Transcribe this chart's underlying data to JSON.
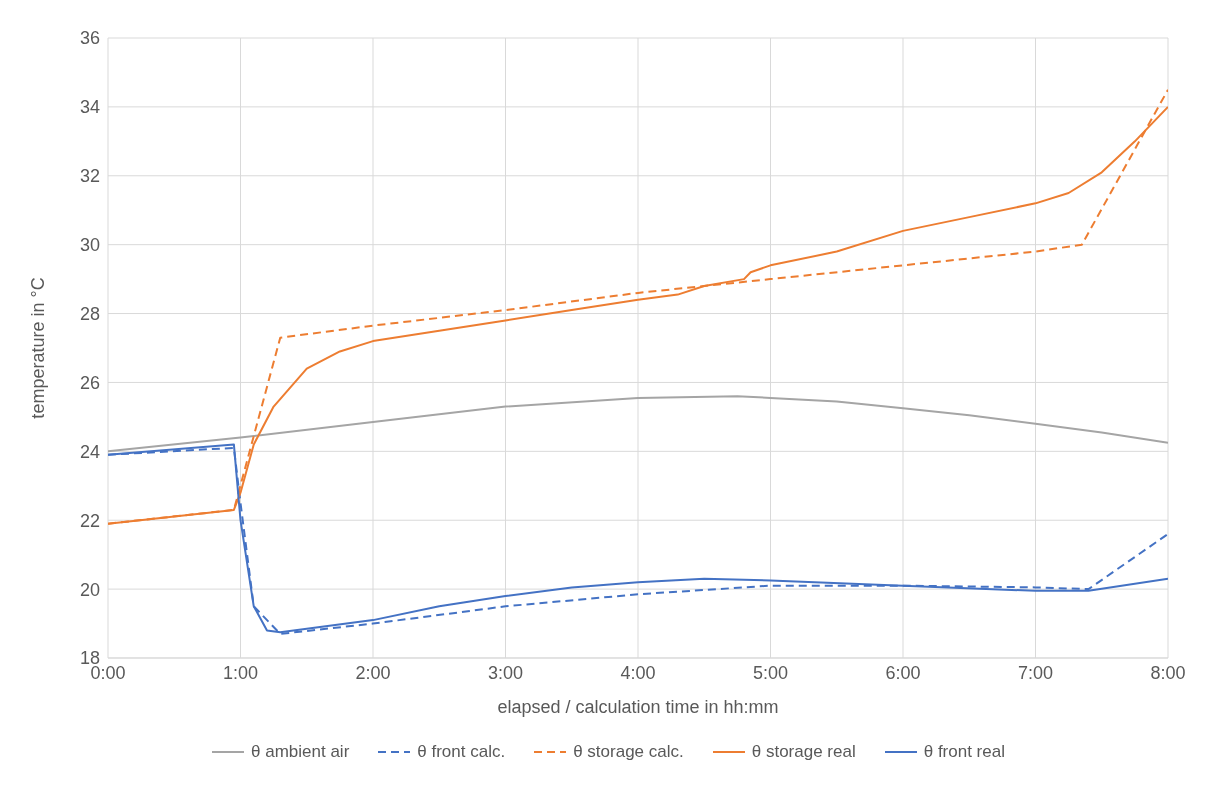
{
  "chart_data": {
    "type": "line",
    "xlabel": "elapsed / calculation time in hh:mm",
    "ylabel": "temperature in °C",
    "xlim": [
      0,
      8
    ],
    "xticks": [
      {
        "value": 0,
        "label": "0:00"
      },
      {
        "value": 1,
        "label": "1:00"
      },
      {
        "value": 2,
        "label": "2:00"
      },
      {
        "value": 3,
        "label": "3:00"
      },
      {
        "value": 4,
        "label": "4:00"
      },
      {
        "value": 5,
        "label": "5:00"
      },
      {
        "value": 6,
        "label": "6:00"
      },
      {
        "value": 7,
        "label": "7:00"
      },
      {
        "value": 8,
        "label": "8:00"
      }
    ],
    "ylim": [
      18,
      36
    ],
    "yticks": [
      18,
      20,
      22,
      24,
      26,
      28,
      30,
      32,
      34,
      36
    ],
    "grid": true,
    "legend": "bottom",
    "series": [
      {
        "name": "θ ambient air",
        "color": "#a5a5a5",
        "line_style": "solid",
        "x": [
          0,
          1,
          2,
          3,
          4,
          4.75,
          5,
          5.5,
          6,
          6.5,
          7,
          7.5,
          8
        ],
        "values": [
          24.0,
          24.4,
          24.85,
          25.3,
          25.55,
          25.6,
          25.55,
          25.45,
          25.25,
          25.05,
          24.8,
          24.55,
          24.25
        ]
      },
      {
        "name": "θ front calc.",
        "color": "#4472c4",
        "line_style": "dashed",
        "x": [
          0,
          0.95,
          1.0,
          1.1,
          1.3,
          2,
          3,
          4,
          5,
          6,
          7,
          7.4,
          8
        ],
        "values": [
          23.9,
          24.1,
          22.5,
          19.5,
          18.7,
          19.0,
          19.5,
          19.85,
          20.1,
          20.1,
          20.05,
          20.0,
          21.6
        ]
      },
      {
        "name": "θ storage calc.",
        "color": "#ed7d31",
        "line_style": "dashed",
        "x": [
          0,
          0.95,
          1.3,
          2,
          3,
          4,
          5,
          6,
          7,
          7.35,
          8
        ],
        "values": [
          21.9,
          22.3,
          27.3,
          27.65,
          28.1,
          28.6,
          29.0,
          29.4,
          29.8,
          30.0,
          34.5
        ]
      },
      {
        "name": "θ storage real",
        "color": "#ed7d31",
        "line_style": "solid",
        "x": [
          0,
          0.95,
          1.0,
          1.1,
          1.25,
          1.5,
          1.75,
          2,
          2.5,
          3,
          3.5,
          4,
          4.3,
          4.5,
          4.8,
          4.85,
          5,
          5.5,
          6,
          6.5,
          7,
          7.25,
          7.5,
          7.75,
          8
        ],
        "values": [
          21.9,
          22.3,
          22.8,
          24.2,
          25.3,
          26.4,
          26.9,
          27.2,
          27.5,
          27.8,
          28.1,
          28.4,
          28.55,
          28.8,
          29.0,
          29.2,
          29.4,
          29.8,
          30.4,
          30.8,
          31.2,
          31.5,
          32.1,
          33.0,
          34.0
        ]
      },
      {
        "name": "θ front real",
        "color": "#4472c4",
        "line_style": "solid",
        "x": [
          0,
          0.95,
          1.0,
          1.1,
          1.2,
          1.3,
          2,
          2.5,
          3,
          3.5,
          4,
          4.5,
          5,
          6,
          7,
          7.4,
          8
        ],
        "values": [
          23.9,
          24.2,
          22.0,
          19.5,
          18.8,
          18.75,
          19.1,
          19.5,
          19.8,
          20.05,
          20.2,
          20.3,
          20.25,
          20.1,
          19.95,
          19.95,
          20.3
        ]
      }
    ]
  }
}
